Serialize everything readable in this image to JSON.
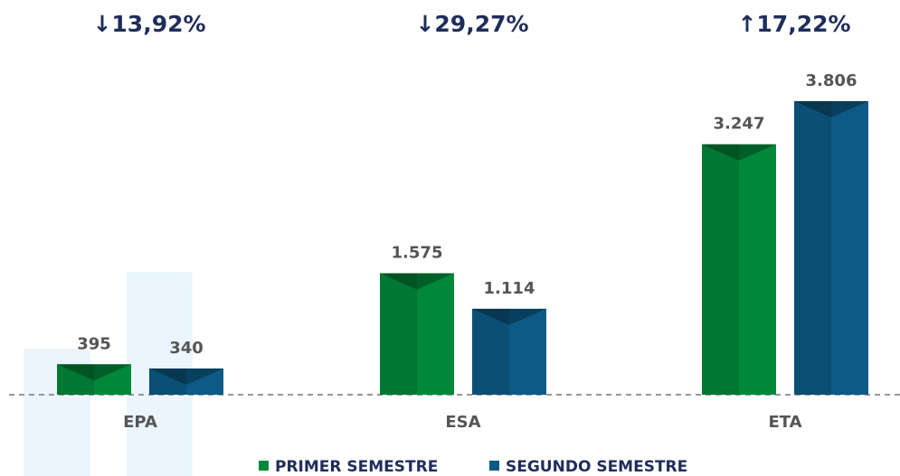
{
  "chart_data": {
    "type": "bar",
    "categories": [
      "EPA",
      "ESA",
      "ETA"
    ],
    "annotations": [
      "↓13,92%",
      "↓29,27%",
      "↑17,22%"
    ],
    "series": [
      {
        "name": "PRIMER SEMESTRE",
        "color": "#00883a",
        "values": [
          395,
          1575,
          3247
        ],
        "value_labels": [
          "395",
          "1.575",
          "3.247"
        ]
      },
      {
        "name": "SEGUNDO SEMESTRE",
        "color": "#0d5a86",
        "values": [
          340,
          1114,
          3806
        ],
        "value_labels": [
          "340",
          "1.114",
          "3.806"
        ]
      }
    ]
  }
}
